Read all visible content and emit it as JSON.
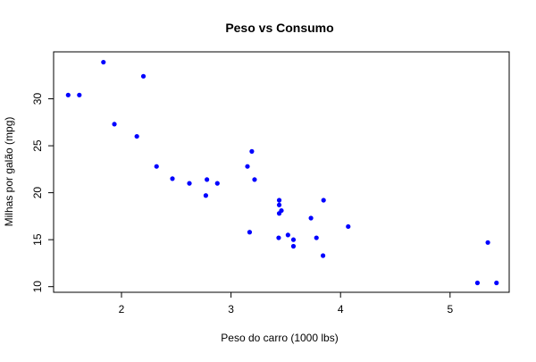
{
  "chart_data": {
    "type": "scatter",
    "title": "Peso vs Consumo",
    "xlabel": "Peso do carro (1000 lbs)",
    "ylabel": "Milhas por galão (mpg)",
    "xlim": [
      1.38,
      5.54
    ],
    "ylim": [
      9.4,
      35.0
    ],
    "xticks": [
      2,
      3,
      4,
      5
    ],
    "yticks": [
      10,
      15,
      20,
      25,
      30
    ],
    "grid": false,
    "marker_color": "#0000ff",
    "series": [
      {
        "points": [
          [
            1.513,
            30.4
          ],
          [
            1.615,
            30.4
          ],
          [
            1.835,
            33.9
          ],
          [
            1.935,
            27.3
          ],
          [
            2.14,
            26.0
          ],
          [
            2.2,
            32.4
          ],
          [
            2.32,
            22.8
          ],
          [
            2.465,
            21.5
          ],
          [
            2.62,
            21.0
          ],
          [
            2.77,
            19.7
          ],
          [
            2.78,
            21.4
          ],
          [
            2.875,
            21.0
          ],
          [
            3.15,
            22.8
          ],
          [
            3.17,
            15.8
          ],
          [
            3.19,
            24.4
          ],
          [
            3.215,
            21.4
          ],
          [
            3.435,
            15.2
          ],
          [
            3.44,
            18.7
          ],
          [
            3.44,
            19.2
          ],
          [
            3.44,
            17.8
          ],
          [
            3.46,
            18.1
          ],
          [
            3.52,
            15.5
          ],
          [
            3.57,
            15.0
          ],
          [
            3.57,
            14.3
          ],
          [
            3.73,
            17.3
          ],
          [
            3.78,
            15.2
          ],
          [
            3.84,
            13.3
          ],
          [
            3.845,
            19.2
          ],
          [
            4.07,
            16.4
          ],
          [
            5.25,
            10.4
          ],
          [
            5.345,
            14.7
          ],
          [
            5.424,
            10.4
          ]
        ]
      }
    ]
  }
}
